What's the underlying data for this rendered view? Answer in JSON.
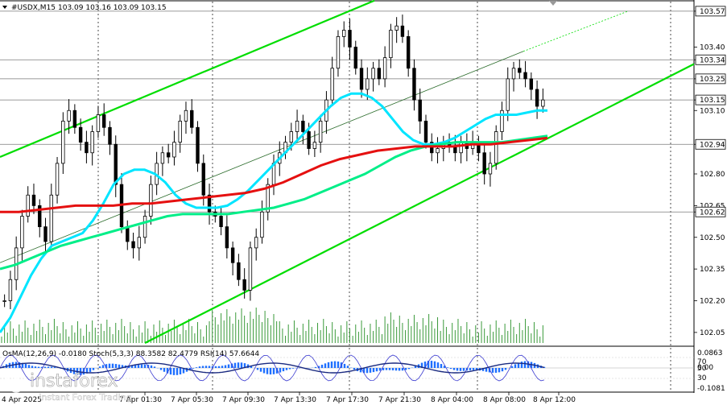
{
  "header": {
    "symbol": "#USDX,M15",
    "ohlc": "103.09 103.16 103.09 103.15"
  },
  "watermark": {
    "brand": "instaforex",
    "tagline": "Instant Forex Trading"
  },
  "chart_data": {
    "type": "candlestick",
    "symbol": "#USDX",
    "timeframe": "M15",
    "ylim": [
      102.0,
      103.6
    ],
    "price_ticks": [
      "103.57",
      "103.40",
      "103.34",
      "103.25",
      "103.15",
      "103.10",
      "102.94",
      "102.80",
      "102.65",
      "102.62",
      "102.50",
      "102.35",
      "102.20",
      "102.05"
    ],
    "highlighted_levels": [
      {
        "value": 103.57,
        "label": "103.57",
        "color": "#ffffff"
      },
      {
        "value": 103.34,
        "label": "103.34",
        "color": "#ffffff"
      },
      {
        "value": 103.25,
        "label": "103.25",
        "color": "#ffffff"
      },
      {
        "value": 103.15,
        "label": "103.15",
        "color": "#ffffff"
      },
      {
        "value": 102.94,
        "label": "102.94",
        "color": "#ffffff"
      },
      {
        "value": 102.62,
        "label": "102.62",
        "color": "#ffffff"
      }
    ],
    "time_labels": [
      "7 Apr 01:30",
      "7 Apr 05:30",
      "7 Apr 09:30",
      "7 Apr 13:30",
      "7 Apr 17:30",
      "7 Apr 21:30",
      "8 Apr 04:00",
      "8 Apr 08:00",
      "8 Apr 12:00"
    ],
    "first_time_label_partial": "4 Apr 2025",
    "closes": [
      102.2,
      102.3,
      102.45,
      102.6,
      102.7,
      102.65,
      102.55,
      102.48,
      102.7,
      102.85,
      103.05,
      103.1,
      103.02,
      102.95,
      102.9,
      103.0,
      103.08,
      103.02,
      102.94,
      102.75,
      102.55,
      102.48,
      102.45,
      102.5,
      102.6,
      102.75,
      102.85,
      102.9,
      102.88,
      102.95,
      103.05,
      103.1,
      103.02,
      102.85,
      102.7,
      102.62,
      102.6,
      102.55,
      102.45,
      102.38,
      102.3,
      102.25,
      102.45,
      102.5,
      102.62,
      102.75,
      102.85,
      102.9,
      102.95,
      103.0,
      103.05,
      103.0,
      102.92,
      102.95,
      103.05,
      103.15,
      103.3,
      103.45,
      103.48,
      103.4,
      103.3,
      103.2,
      103.25,
      103.3,
      103.25,
      103.35,
      103.48,
      103.5,
      103.45,
      103.3,
      103.15,
      103.05,
      102.95,
      102.9,
      102.92,
      102.95,
      102.93,
      102.9,
      102.95,
      102.92,
      102.95,
      102.9,
      102.8,
      102.85,
      103.0,
      103.1,
      103.25,
      103.3,
      103.28,
      103.25,
      103.2,
      103.12,
      103.15
    ],
    "series": [
      {
        "name": "MA fast",
        "color": "#00e5ff",
        "values": [
          102.05,
          102.12,
          102.22,
          102.32,
          102.4,
          102.46,
          102.48,
          102.5,
          102.52,
          102.58,
          102.66,
          102.75,
          102.8,
          102.82,
          102.82,
          102.8,
          102.76,
          102.7,
          102.66,
          102.64,
          102.64,
          102.64,
          102.65,
          102.68,
          102.72,
          102.77,
          102.82,
          102.87,
          102.92,
          102.97,
          103.02,
          103.07,
          103.12,
          103.16,
          103.18,
          103.18,
          103.16,
          103.12,
          103.06,
          103.0,
          102.96,
          102.94,
          102.94,
          102.95,
          102.97,
          103.0,
          103.03,
          103.06,
          103.08,
          103.08,
          103.08,
          103.09,
          103.1,
          103.1
        ]
      },
      {
        "name": "MA medium",
        "color": "#00ee88",
        "values": [
          102.35,
          102.37,
          102.4,
          102.43,
          102.46,
          102.48,
          102.5,
          102.52,
          102.54,
          102.56,
          102.58,
          102.6,
          102.61,
          102.61,
          102.61,
          102.61,
          102.62,
          102.63,
          102.64,
          102.66,
          102.68,
          102.71,
          102.74,
          102.77,
          102.8,
          102.84,
          102.88,
          102.91,
          102.93,
          102.94,
          102.95,
          102.95,
          102.95,
          102.95,
          102.96,
          102.97,
          102.98
        ]
      },
      {
        "name": "MA slow",
        "color": "#e51010",
        "values": [
          102.62,
          102.62,
          102.63,
          102.64,
          102.65,
          102.65,
          102.65,
          102.66,
          102.66,
          102.67,
          102.68,
          102.69,
          102.7,
          102.71,
          102.73,
          102.76,
          102.8,
          102.84,
          102.87,
          102.89,
          102.91,
          102.92,
          102.93,
          102.93,
          102.93,
          102.94,
          102.94,
          102.95,
          102.96,
          102.97
        ]
      }
    ],
    "channel_color": "#00dd00",
    "grid": "none (dashed vertical session separators)",
    "volume_bars": "green histogram at bottom of price panel",
    "oscillator_panel": {
      "label": "OsMA(12,26,9) -0.0180  Stoch(5,3,3) 88.3582 82.4779  RSI(14) 57.6644",
      "scale_labels": [
        "0.0863",
        "0.00",
        "-0.1081",
        "70",
        "50",
        "30"
      ]
    }
  }
}
